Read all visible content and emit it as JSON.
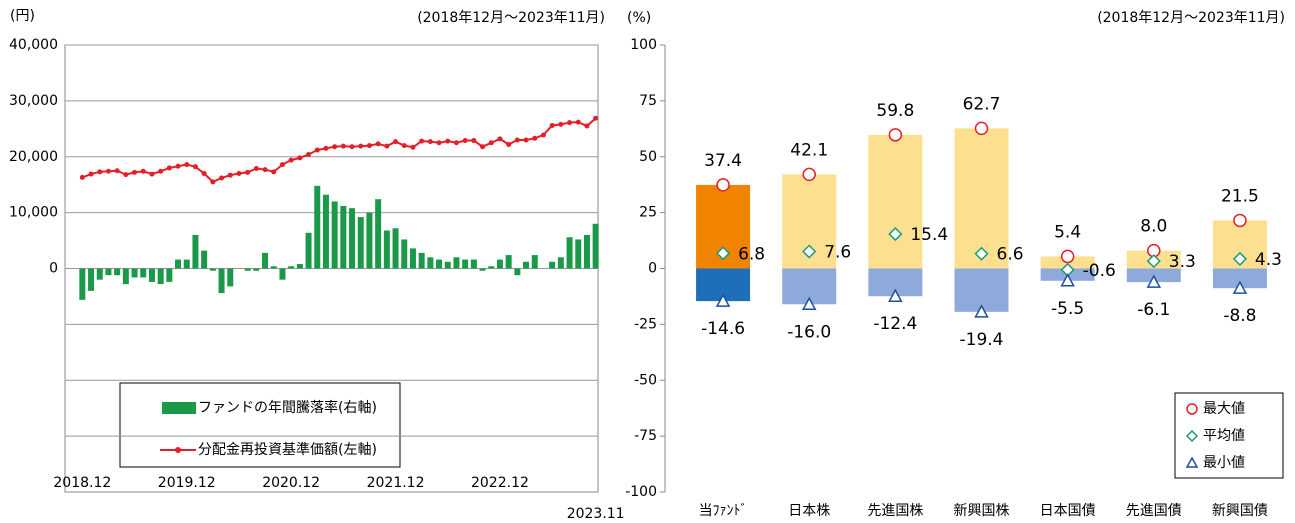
{
  "chart_data": [
    {
      "type": "combo",
      "unit": "(円)",
      "period": "(2018年12月～2023年11月)",
      "categories": [
        "2018.12",
        null,
        null,
        null,
        null,
        null,
        null,
        null,
        null,
        null,
        null,
        null,
        "2019.12",
        null,
        null,
        null,
        null,
        null,
        null,
        null,
        null,
        null,
        null,
        null,
        "2020.12",
        null,
        null,
        null,
        null,
        null,
        null,
        null,
        null,
        null,
        null,
        null,
        "2021.12",
        null,
        null,
        null,
        null,
        null,
        null,
        null,
        null,
        null,
        null,
        null,
        "2022.12",
        null,
        null,
        null,
        null,
        null,
        null,
        null,
        null,
        null,
        null,
        "2023.11"
      ],
      "ylim": [
        -40000,
        40000
      ],
      "yticks": [
        {
          "value": 0,
          "label": "0"
        },
        {
          "value": 10000,
          "label": "10,000"
        },
        {
          "value": 20000,
          "label": "20,000"
        },
        {
          "value": 30000,
          "label": "30,000"
        },
        {
          "value": 40000,
          "label": "40,000"
        }
      ],
      "y2lim": [
        -100,
        100
      ],
      "grid": true,
      "series": [
        {
          "name": "ファンドの年間騰落率(右軸)",
          "type": "bar",
          "axis": "y2",
          "color": "#1a9a48",
          "values": [
            -14,
            -10,
            -5,
            -3,
            -3,
            -7,
            -4,
            -4,
            -6,
            -7,
            -6,
            4,
            4,
            15,
            8,
            -1,
            -11,
            -8,
            0,
            -1,
            -1,
            7,
            1,
            -5,
            1,
            2,
            16,
            37,
            33,
            30,
            28,
            27,
            23,
            25,
            31,
            17,
            18,
            13,
            9,
            7,
            5,
            4,
            3,
            5,
            4,
            4,
            -1,
            1,
            4,
            6,
            -3,
            3,
            6,
            0,
            3,
            5,
            14,
            13,
            15,
            20
          ]
        },
        {
          "name": "分配金再投資基準価額(左軸)",
          "type": "line",
          "color": "#e3202a",
          "values": [
            16300,
            16900,
            17300,
            17400,
            17500,
            16800,
            17200,
            17400,
            16900,
            17400,
            18000,
            18300,
            18600,
            18200,
            17000,
            15500,
            16200,
            16700,
            17000,
            17200,
            17900,
            17700,
            17300,
            18600,
            19400,
            19800,
            20400,
            21200,
            21500,
            21800,
            21900,
            21800,
            21900,
            22000,
            22300,
            21900,
            22700,
            22000,
            21700,
            22800,
            22700,
            22500,
            22800,
            22500,
            22900,
            22900,
            21800,
            22500,
            23200,
            22200,
            23000,
            23000,
            23300,
            23900,
            25600,
            25800,
            26100,
            26200,
            25500,
            26900
          ]
        }
      ]
    },
    {
      "type": "range",
      "unit": "(%)",
      "period": "(2018年12月～2023年11月)",
      "categories": [
        "当ﾌｧﾝﾄﾞ",
        "日本株",
        "先進国株",
        "新興国株",
        "日本国債",
        "先進国債",
        "新興国債"
      ],
      "ylim": [
        -100,
        100
      ],
      "yticks": [
        -100,
        -75,
        -50,
        -25,
        0,
        25,
        50,
        75,
        100
      ],
      "series": [
        {
          "name": "最大値",
          "color": "#e3202a",
          "bar_colors": [
            "#f08300",
            "#fde08f",
            "#fde08f",
            "#fde08f",
            "#fde08f",
            "#fde08f",
            "#fde08f"
          ],
          "values": [
            37.4,
            42.1,
            59.8,
            62.7,
            5.4,
            8.0,
            21.5
          ],
          "value_labels": [
            "37.4",
            "42.1",
            "59.8",
            "62.7",
            "5.4",
            "8.0",
            "21.5"
          ]
        },
        {
          "name": "平均値",
          "color": "#1a9a7a",
          "values": [
            6.8,
            7.6,
            15.4,
            6.6,
            -0.6,
            3.3,
            4.3
          ],
          "value_labels": [
            "6.8",
            "7.6",
            "15.4",
            "6.6",
            "-0.6",
            "3.3",
            "4.3"
          ]
        },
        {
          "name": "最小値",
          "color": "#1f4e9a",
          "bar_colors": [
            "#1f6fb8",
            "#8eaadb",
            "#8eaadb",
            "#8eaadb",
            "#8eaadb",
            "#8eaadb",
            "#8eaadb"
          ],
          "values": [
            -14.6,
            -16.0,
            -12.4,
            -19.4,
            -5.5,
            -6.1,
            -8.8
          ],
          "value_labels": [
            "-14.6",
            "-16.0",
            "-12.4",
            "-19.4",
            "-5.5",
            "-6.1",
            "-8.8"
          ]
        }
      ]
    }
  ]
}
